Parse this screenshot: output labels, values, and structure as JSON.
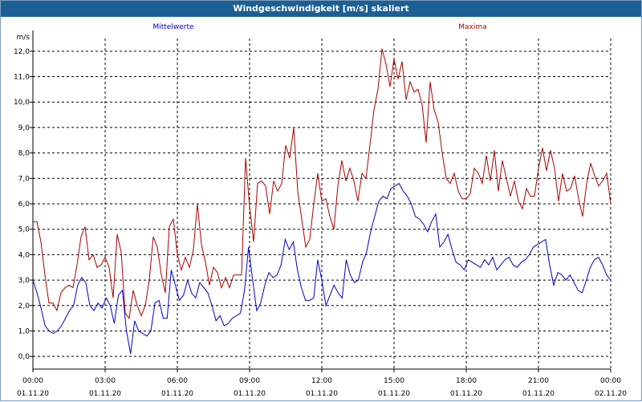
{
  "window": {
    "title": "Windgeschwindigkeit [m/s] skaliert"
  },
  "chart_data": {
    "type": "line",
    "ylabel": "m/s",
    "ylim": [
      -0.5,
      12.5
    ],
    "yticks": [
      "12,0",
      "11,0",
      "10,0",
      "9,0",
      "8,0",
      "7,0",
      "6,0",
      "5,0",
      "4,0",
      "3,0",
      "2,0",
      "1,0",
      "0,0"
    ],
    "xlim": [
      0,
      24
    ],
    "xticks": [
      {
        "time": "00:00",
        "date": "01.11.20"
      },
      {
        "time": "03:00",
        "date": "01.11.20"
      },
      {
        "time": "06:00",
        "date": "01.11.20"
      },
      {
        "time": "09:00",
        "date": "01.11.20"
      },
      {
        "time": "12:00",
        "date": "01.11.20"
      },
      {
        "time": "15:00",
        "date": "01.11.20"
      },
      {
        "time": "18:00",
        "date": "01.11.20"
      },
      {
        "time": "21:00",
        "date": "01.11.20"
      },
      {
        "time": "00:00",
        "date": "02.11.20"
      }
    ],
    "grid": true,
    "legend_position": "top",
    "series": [
      {
        "name": "Mittelwerte",
        "color": "#0000cc",
        "values": [
          3.0,
          2.5,
          1.9,
          1.2,
          1.0,
          0.9,
          1.0,
          1.2,
          1.5,
          1.8,
          2.0,
          2.8,
          3.1,
          2.9,
          2.0,
          1.8,
          2.1,
          1.9,
          2.3,
          2.0,
          1.3,
          2.4,
          2.6,
          1.0,
          0.1,
          1.4,
          1.0,
          0.9,
          0.8,
          1.0,
          2.1,
          2.2,
          1.5,
          1.5,
          3.4,
          2.8,
          2.2,
          2.4,
          3.0,
          2.5,
          2.3,
          2.9,
          2.7,
          2.5,
          2.0,
          1.4,
          1.6,
          1.2,
          1.3,
          1.5,
          1.6,
          1.7,
          2.6,
          4.3,
          3.0,
          1.8,
          2.1,
          2.8,
          3.3,
          3.1,
          3.2,
          3.6,
          4.6,
          4.2,
          4.5,
          3.4,
          2.7,
          2.2,
          2.2,
          2.3,
          3.8,
          3.0,
          2.0,
          2.4,
          2.8,
          2.5,
          2.3,
          3.8,
          3.2,
          2.9,
          3.0,
          3.7,
          4.1,
          4.9,
          5.5,
          6.1,
          6.3,
          6.2,
          6.6,
          6.7,
          6.8,
          6.5,
          6.3,
          6.0,
          5.5,
          5.4,
          5.2,
          4.9,
          5.3,
          5.6,
          4.3,
          4.5,
          4.8,
          4.2,
          3.7,
          3.6,
          3.4,
          3.8,
          3.7,
          3.6,
          3.5,
          3.8,
          3.6,
          3.9,
          3.4,
          3.6,
          3.8,
          3.9,
          3.6,
          3.5,
          3.7,
          3.8,
          4.0,
          4.3,
          4.4,
          4.5,
          4.6,
          3.6,
          2.8,
          3.3,
          3.2,
          3.0,
          3.2,
          2.9,
          2.6,
          2.5,
          3.0,
          3.5,
          3.8,
          3.9,
          3.6,
          3.2,
          3.0
        ]
      },
      {
        "name": "Maxima",
        "color": "#aa0000",
        "values": [
          5.3,
          5.3,
          4.5,
          3.2,
          2.1,
          2.1,
          1.8,
          2.5,
          2.7,
          2.8,
          2.7,
          3.6,
          4.7,
          5.1,
          3.8,
          4.0,
          3.5,
          3.6,
          3.9,
          3.5,
          2.3,
          4.8,
          4.1,
          1.7,
          1.5,
          2.6,
          2.0,
          1.6,
          2.0,
          3.0,
          4.7,
          4.3,
          3.2,
          2.5,
          5.1,
          5.4,
          4.0,
          3.4,
          3.9,
          3.5,
          4.2,
          6.0,
          4.4,
          3.7,
          2.8,
          3.5,
          3.3,
          2.7,
          3.1,
          2.7,
          3.2,
          3.2,
          3.2,
          7.8,
          5.9,
          4.5,
          6.8,
          6.9,
          6.7,
          5.6,
          6.9,
          6.5,
          6.8,
          8.3,
          7.8,
          9.0,
          6.5,
          5.4,
          4.3,
          4.6,
          6.0,
          7.2,
          6.1,
          6.2,
          5.5,
          5.0,
          6.7,
          7.7,
          6.9,
          7.4,
          6.9,
          6.1,
          7.2,
          7.0,
          8.3,
          9.7,
          10.5,
          12.1,
          11.5,
          10.6,
          11.7,
          10.9,
          11.6,
          10.1,
          10.8,
          10.4,
          10.5,
          9.9,
          8.4,
          10.8,
          9.7,
          9.2,
          8.0,
          7.0,
          6.8,
          7.2,
          6.5,
          6.2,
          6.2,
          6.4,
          7.4,
          7.2,
          6.8,
          7.9,
          6.9,
          8.1,
          6.5,
          7.7,
          7.0,
          6.3,
          6.9,
          6.1,
          5.8,
          6.6,
          6.3,
          6.3,
          7.4,
          8.2,
          7.3,
          8.1,
          7.4,
          6.1,
          7.2,
          6.5,
          6.6,
          7.1,
          6.2,
          5.5,
          6.8,
          7.6,
          7.1,
          6.7,
          6.9,
          7.2,
          6.0
        ]
      }
    ]
  }
}
